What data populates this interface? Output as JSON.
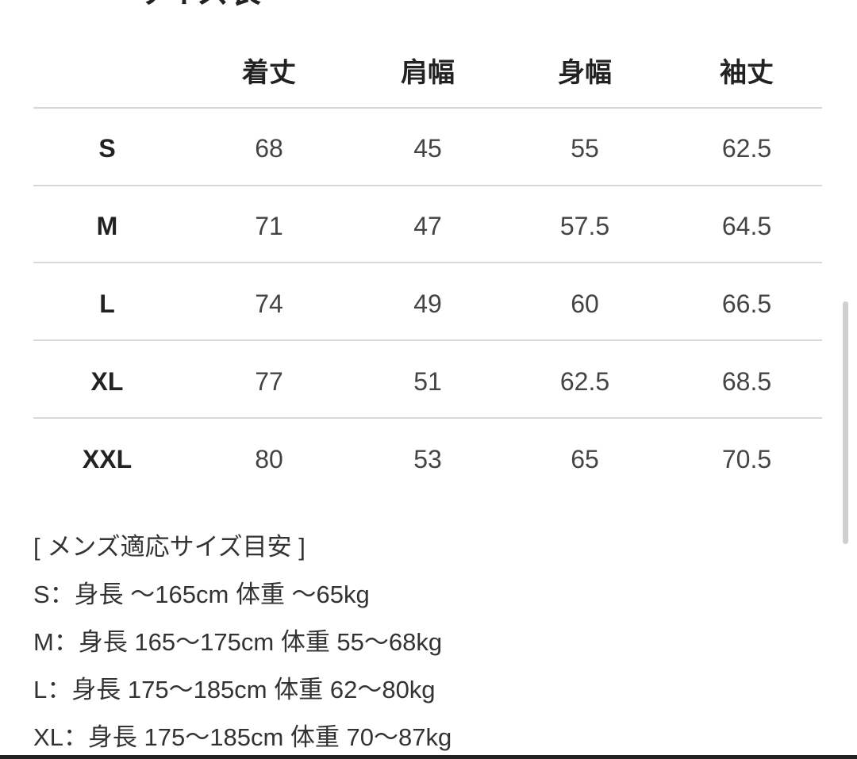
{
  "title": "サイズ表",
  "table": {
    "headers": [
      "",
      "着丈",
      "肩幅",
      "身幅",
      "袖丈"
    ],
    "rows": [
      [
        "S",
        "68",
        "45",
        "55",
        "62.5"
      ],
      [
        "M",
        "71",
        "47",
        "57.5",
        "64.5"
      ],
      [
        "L",
        "74",
        "49",
        "60",
        "66.5"
      ],
      [
        "XL",
        "77",
        "51",
        "62.5",
        "68.5"
      ],
      [
        "XXL",
        "80",
        "53",
        "65",
        "70.5"
      ]
    ]
  },
  "guide": {
    "heading": "[ メンズ適応サイズ目安 ]",
    "lines": [
      "S：身長 ～165cm 体重 ～65kg",
      "M：身長 165～175cm 体重 55～68kg",
      "L：身長 175～185cm 体重 62～80kg",
      "XL：身長 175～185cm 体重 70～87kg"
    ]
  }
}
